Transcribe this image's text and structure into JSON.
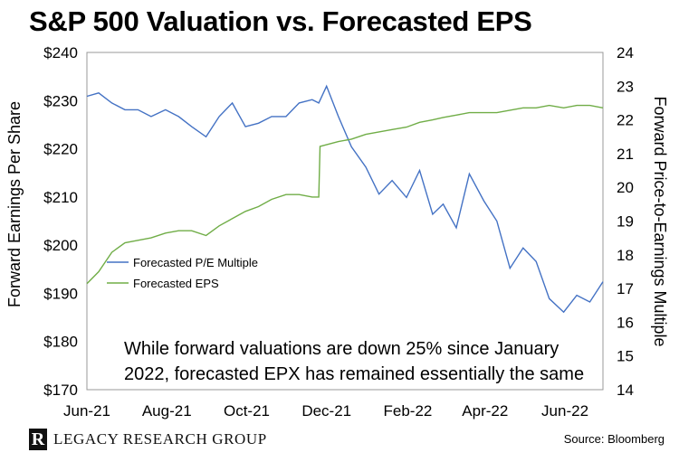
{
  "title": "S&P 500 Valuation vs. Forecasted EPS",
  "footer": {
    "logo_letter": "R",
    "logo_text": "LEGACY RESEARCH GROUP",
    "source": "Source: Bloomberg"
  },
  "colors": {
    "pe_line": "#4472C4",
    "eps_line": "#70AD47",
    "axis": "#999999"
  },
  "chart_data": {
    "type": "line",
    "title": "S&P 500 Valuation vs. Forecasted EPS",
    "xlabel": "",
    "x_ticks": [
      "Jun-21",
      "Aug-21",
      "Oct-21",
      "Dec-21",
      "Feb-22",
      "Apr-22",
      "Jun-22"
    ],
    "ylabel_left": "Forward Earnings Per Share",
    "ylim_left": [
      170,
      240
    ],
    "y_ticks_left": [
      "$170",
      "$180",
      "$190",
      "$200",
      "$210",
      "$220",
      "$230",
      "$240"
    ],
    "ylabel_right": "Forward Price-to-Earnings Multiple",
    "ylim_right": [
      14,
      24
    ],
    "y_ticks_right": [
      "14",
      "15",
      "16",
      "17",
      "18",
      "19",
      "20",
      "21",
      "22",
      "23",
      "24"
    ],
    "legend_position": "center-left",
    "annotation": [
      "While forward valuations are down 25% since January",
      "2022, forecasted EPX has remained essentially the same"
    ],
    "series": [
      {
        "name": "Forecasted P/E Multiple",
        "axis": "right",
        "x": [
          "2021-06-01",
          "2021-06-10",
          "2021-06-20",
          "2021-06-30",
          "2021-07-10",
          "2021-07-20",
          "2021-07-31",
          "2021-08-10",
          "2021-08-20",
          "2021-08-31",
          "2021-09-10",
          "2021-09-20",
          "2021-09-30",
          "2021-10-10",
          "2021-10-20",
          "2021-10-31",
          "2021-11-10",
          "2021-11-20",
          "2021-11-25",
          "2021-12-01",
          "2021-12-10",
          "2021-12-20",
          "2021-12-31",
          "2022-01-10",
          "2022-01-20",
          "2022-01-31",
          "2022-02-10",
          "2022-02-20",
          "2022-02-28",
          "2022-03-10",
          "2022-03-20",
          "2022-03-31",
          "2022-04-10",
          "2022-04-20",
          "2022-04-30",
          "2022-05-10",
          "2022-05-20",
          "2022-05-31",
          "2022-06-10",
          "2022-06-20",
          "2022-06-30"
        ],
        "values": [
          22.7,
          22.8,
          22.5,
          22.3,
          22.3,
          22.1,
          22.3,
          22.1,
          21.8,
          21.5,
          22.1,
          22.5,
          21.8,
          21.9,
          22.1,
          22.1,
          22.5,
          22.6,
          22.5,
          23.0,
          22.1,
          21.2,
          20.6,
          19.8,
          20.2,
          19.7,
          20.5,
          19.2,
          19.5,
          18.8,
          20.4,
          19.6,
          19.0,
          17.6,
          18.2,
          17.8,
          16.7,
          16.3,
          16.8,
          16.6,
          17.2
        ]
      },
      {
        "name": "Forecasted EPS",
        "axis": "left",
        "x": [
          "2021-06-01",
          "2021-06-10",
          "2021-06-20",
          "2021-06-30",
          "2021-07-10",
          "2021-07-20",
          "2021-07-31",
          "2021-08-10",
          "2021-08-20",
          "2021-08-31",
          "2021-09-10",
          "2021-09-20",
          "2021-09-30",
          "2021-10-10",
          "2021-10-20",
          "2021-10-31",
          "2021-11-10",
          "2021-11-20",
          "2021-11-25",
          "2021-11-26",
          "2021-12-10",
          "2021-12-20",
          "2021-12-31",
          "2022-01-10",
          "2022-01-20",
          "2022-01-31",
          "2022-02-10",
          "2022-02-20",
          "2022-02-28",
          "2022-03-10",
          "2022-03-20",
          "2022-03-31",
          "2022-04-10",
          "2022-04-20",
          "2022-04-30",
          "2022-05-10",
          "2022-05-20",
          "2022-05-31",
          "2022-06-10",
          "2022-06-20",
          "2022-06-30"
        ],
        "values": [
          192.0,
          194.5,
          198.5,
          200.5,
          201.0,
          201.5,
          202.5,
          203.0,
          203.0,
          202.0,
          204.0,
          205.5,
          207.0,
          208.0,
          209.5,
          210.5,
          210.5,
          210.0,
          210.0,
          220.5,
          221.5,
          222.0,
          223.0,
          223.5,
          224.0,
          224.5,
          225.5,
          226.0,
          226.5,
          227.0,
          227.5,
          227.5,
          227.5,
          228.0,
          228.5,
          228.5,
          229.0,
          228.5,
          229.0,
          229.0,
          228.5
        ]
      }
    ]
  }
}
